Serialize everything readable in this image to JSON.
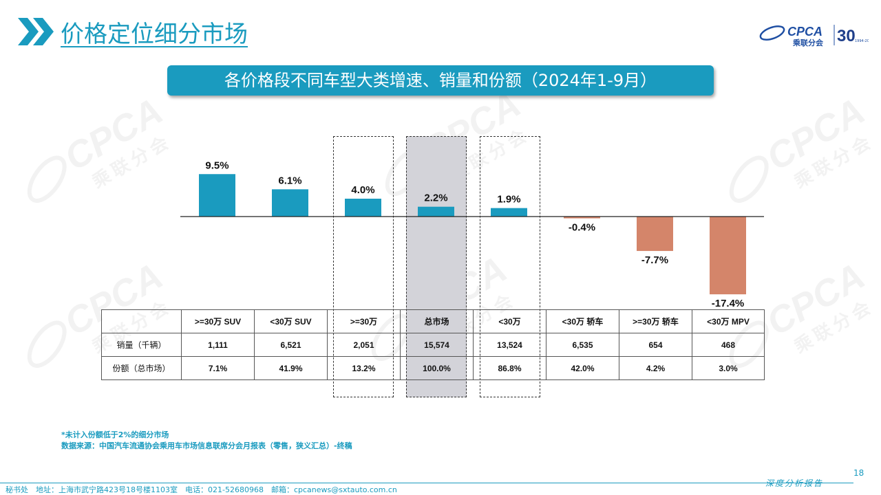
{
  "header": {
    "title": "价格定位细分市场",
    "banner": "各价格段不同车型大类增速、销量和份额（2024年1-9月）"
  },
  "logo": {
    "brand": "CPCA",
    "brand_cn": "乘联分会",
    "anniversary": "30",
    "years": "1994-2024"
  },
  "chart_data": {
    "type": "bar",
    "categories": [
      ">=30万 SUV",
      "<30万 SUV",
      ">=30万",
      "总市场",
      "<30万",
      "<30万 轿车",
      ">=30万 轿车",
      "<30万 MPV"
    ],
    "values": [
      9.5,
      6.1,
      4.0,
      2.2,
      1.9,
      -0.4,
      -7.7,
      -17.4
    ],
    "value_labels": [
      "9.5%",
      "6.1%",
      "4.0%",
      "2.2%",
      "1.9%",
      "-0.4%",
      "-7.7%",
      "-17.4%"
    ],
    "positive_color": "#1a9bbf",
    "negative_color": "#d4856a",
    "highlight": {
      "gray": [
        3
      ],
      "dashed": [
        2,
        4
      ]
    }
  },
  "table": {
    "columns": [
      ">=30万 SUV",
      "<30万 SUV",
      ">=30万",
      "总市场",
      "<30万",
      "<30万 轿车",
      ">=30万 轿车",
      "<30万 MPV"
    ],
    "rows": [
      {
        "label": "销量（千辆）",
        "values": [
          "1,111",
          "6,521",
          "2,051",
          "15,574",
          "13,524",
          "6,535",
          "654",
          "468"
        ]
      },
      {
        "label": "份额（总市场）",
        "values": [
          "7.1%",
          "41.9%",
          "13.2%",
          "100.0%",
          "86.8%",
          "42.0%",
          "4.2%",
          "3.0%"
        ]
      }
    ]
  },
  "notes": {
    "line1": "*未计入份额低于2%的细分市场",
    "line2": "数据来源：中国汽车流通协会乘用车市场信息联席分会月报表（零售，狭义汇总）-终稿"
  },
  "footer": {
    "address": "秘书处　地址：上海市武宁路423号18号楼1103室　电话：021-52680968　邮箱：cpcanews@sxtauto.com.cn",
    "page": "18",
    "tag": "深度分析报告"
  },
  "colors": {
    "accent": "#1a9bbf",
    "brand": "#1f4fa3"
  }
}
